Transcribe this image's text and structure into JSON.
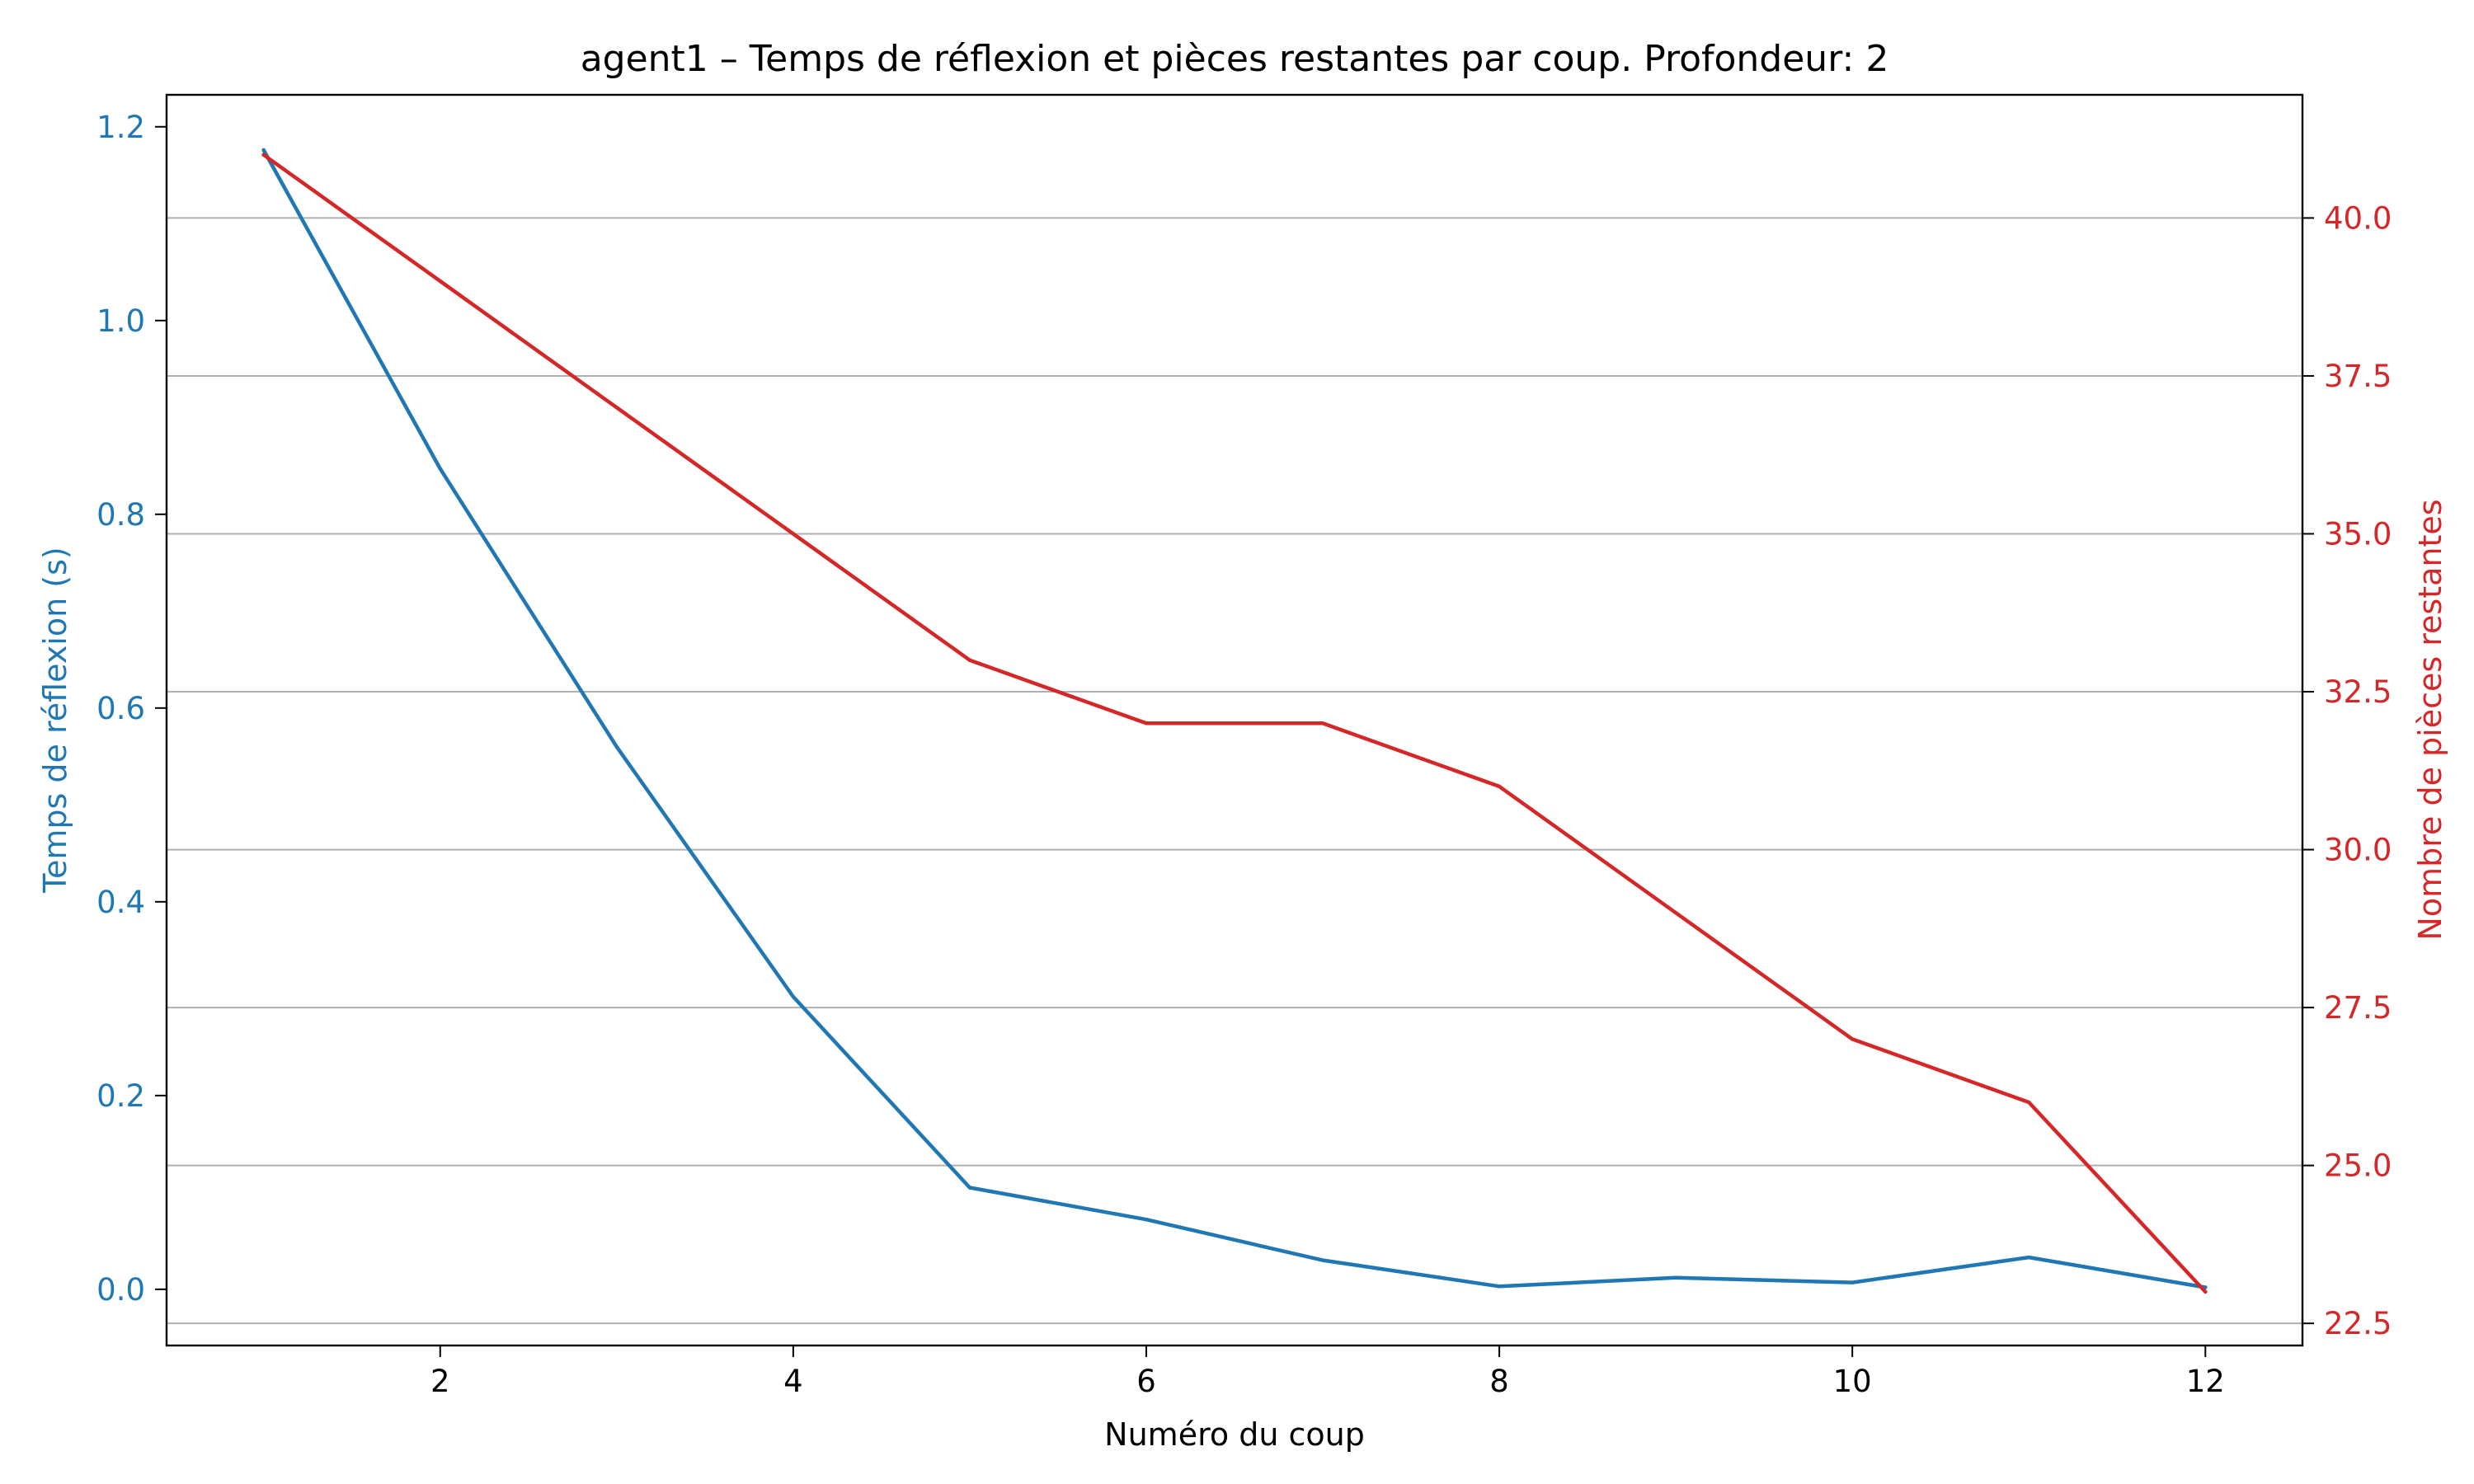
{
  "chart_data": {
    "type": "line",
    "title": "agent1 – Temps de réflexion et pièces restantes par coup. Profondeur: 2",
    "xlabel": "Numéro du coup",
    "ylabel_left": "Temps de réflexion (s)",
    "ylabel_right": "Nombre de pièces restantes",
    "xlim": [
      0.45,
      12.55
    ],
    "ylim_left": [
      -0.058,
      1.233
    ],
    "ylim_right": [
      22.15,
      41.95
    ],
    "x_ticks": [
      2,
      4,
      6,
      8,
      10,
      12
    ],
    "y_left_ticks": [
      0.0,
      0.2,
      0.4,
      0.6,
      0.8,
      1.0,
      1.2
    ],
    "y_right_ticks": [
      22.5,
      25.0,
      27.5,
      30.0,
      32.5,
      35.0,
      37.5,
      40.0
    ],
    "x_tick_labels": [
      "2",
      "4",
      "6",
      "8",
      "10",
      "12"
    ],
    "y_left_tick_labels": [
      "0.0",
      "0.2",
      "0.4",
      "0.6",
      "0.8",
      "1.0",
      "1.2"
    ],
    "y_right_tick_labels": [
      "22.5",
      "25.0",
      "27.5",
      "30.0",
      "32.5",
      "35.0",
      "37.5",
      "40.0"
    ],
    "grid": "horizontal, right axis",
    "x": [
      1,
      2,
      3,
      4,
      5,
      6,
      7,
      8,
      9,
      10,
      11,
      12
    ],
    "series": [
      {
        "axis": "left",
        "color": "#1f77b4",
        "values": [
          1.176,
          0.847,
          0.56,
          0.302,
          0.105,
          0.072,
          0.03,
          0.003,
          0.012,
          0.007,
          0.033,
          0.002
        ]
      },
      {
        "axis": "right",
        "color": "#d62728",
        "values": [
          41,
          39,
          37,
          35,
          33,
          32,
          32,
          31,
          29,
          27,
          26,
          23
        ]
      }
    ],
    "left_axis_color": "#1f77b4",
    "right_axis_color": "#d62728"
  }
}
